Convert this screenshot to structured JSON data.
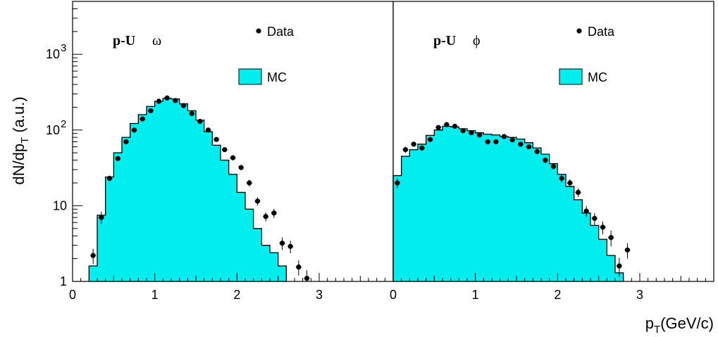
{
  "y_axis_label": {
    "main": "dN/dp",
    "sub": "T",
    "unit": " (a.u.)"
  },
  "x_axis_label": {
    "main": "p",
    "sub": "T",
    "unit": "(GeV/c)"
  },
  "chart_data": [
    {
      "type": "histogram-with-points",
      "title_bold": "p-U",
      "title_symbol": "ω",
      "legend": {
        "data_label": "Data",
        "mc_label": "MC"
      },
      "colors": {
        "mc_fill": "#00EEEE",
        "data_marker": "#000000"
      },
      "xlim": [
        0,
        3.9
      ],
      "ylim": [
        1,
        5000
      ],
      "yscale": "log",
      "x_ticks": [
        0,
        1,
        2,
        3
      ],
      "x_tick_labels": [
        "0",
        "1",
        "2",
        "3"
      ],
      "y_ticks": [
        {
          "value": 1,
          "label": "1"
        },
        {
          "value": 10,
          "label": "10"
        },
        {
          "value": 100,
          "base": "10",
          "exp": "2"
        },
        {
          "value": 1000,
          "base": "10",
          "exp": "3"
        }
      ],
      "mc": {
        "bin_width": 0.1,
        "bin_start": 0.2,
        "values": [
          1.6,
          7.5,
          24,
          50,
          80,
          122,
          160,
          205,
          240,
          262,
          258,
          222,
          180,
          135,
          95,
          63,
          40,
          26,
          15,
          9,
          5,
          3,
          2.4,
          1.6
        ]
      },
      "data": {
        "x": [
          0.25,
          0.35,
          0.45,
          0.55,
          0.65,
          0.75,
          0.85,
          0.95,
          1.05,
          1.15,
          1.25,
          1.35,
          1.45,
          1.55,
          1.65,
          1.75,
          1.85,
          1.95,
          2.05,
          2.15,
          2.25,
          2.35,
          2.45,
          2.55,
          2.65,
          2.75,
          2.85
        ],
        "y": [
          2.2,
          7,
          23,
          42,
          70,
          100,
          140,
          180,
          240,
          265,
          245,
          210,
          165,
          130,
          100,
          75,
          55,
          43,
          32,
          20,
          11.5,
          7.2,
          8,
          3.2,
          2.9,
          1.55,
          1.1
        ],
        "err": [
          0.5,
          1.3,
          2,
          3,
          4,
          5,
          6,
          7,
          9,
          10,
          9,
          8,
          7,
          6,
          5,
          4,
          3.5,
          3,
          2.5,
          2,
          1.4,
          1,
          1.1,
          0.6,
          0.55,
          0.35,
          0.3
        ]
      }
    },
    {
      "type": "histogram-with-points",
      "title_bold": "p-U",
      "title_symbol": "ϕ",
      "legend": {
        "data_label": "Data",
        "mc_label": "MC"
      },
      "colors": {
        "mc_fill": "#00EEEE",
        "data_marker": "#000000"
      },
      "xlim": [
        0,
        3.9
      ],
      "ylim": [
        1,
        5000
      ],
      "yscale": "log",
      "x_ticks": [
        0,
        1,
        2,
        3
      ],
      "x_tick_labels": [
        "0",
        "1",
        "2",
        "3"
      ],
      "mc": {
        "bin_width": 0.1,
        "bin_start": 0.0,
        "values": [
          25,
          45,
          55,
          65,
          85,
          100,
          112,
          110,
          104,
          98,
          92,
          88,
          86,
          82,
          80,
          76,
          68,
          58,
          48,
          36,
          26,
          18,
          12,
          8,
          5.5,
          3.6,
          2.2,
          1.3
        ]
      },
      "data": {
        "x": [
          0.05,
          0.15,
          0.25,
          0.35,
          0.45,
          0.55,
          0.65,
          0.75,
          0.85,
          0.95,
          1.05,
          1.15,
          1.25,
          1.35,
          1.45,
          1.55,
          1.65,
          1.75,
          1.85,
          1.95,
          2.05,
          2.15,
          2.25,
          2.35,
          2.45,
          2.55,
          2.65,
          2.75,
          2.85
        ],
        "y": [
          20,
          55,
          65,
          58,
          75,
          108,
          118,
          112,
          98,
          92,
          86,
          70,
          70,
          82,
          74,
          65,
          60,
          52,
          40,
          33,
          23,
          20,
          15,
          8.5,
          6.8,
          5.2,
          3.8,
          1.6,
          2.6
        ],
        "err": [
          3,
          5,
          5,
          4.5,
          5,
          6,
          6,
          6,
          5.5,
          5,
          5,
          4.5,
          4.5,
          5,
          4.5,
          4.5,
          4,
          4,
          3.5,
          3,
          2.6,
          2.4,
          2,
          1.4,
          1.2,
          1,
          0.9,
          0.45,
          0.6
        ]
      }
    }
  ]
}
